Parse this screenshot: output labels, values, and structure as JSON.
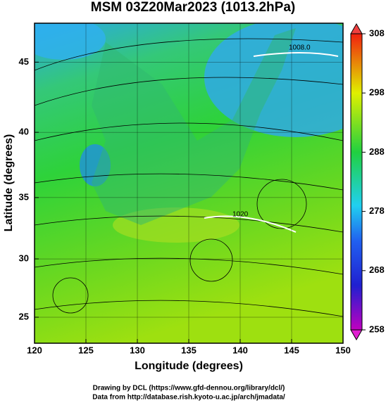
{
  "chart_data": {
    "type": "map",
    "title": "MSM 03Z20Mar2023 (1013.2hPa)",
    "xlabel": "Longitude (degrees)",
    "ylabel": "Latitude  (degrees)",
    "xlim": [
      120,
      150
    ],
    "xticks": [
      120,
      125,
      130,
      135,
      140,
      145,
      150
    ],
    "ylim": [
      22.7,
      47.6
    ],
    "yticks": [
      25,
      30,
      35,
      40,
      45
    ],
    "projection": "mercator",
    "contour_labels": [
      "1008.0",
      "1020"
    ],
    "colorbar": {
      "lim": [
        258,
        308
      ],
      "ticks": [
        258,
        268,
        278,
        288,
        298,
        308
      ]
    },
    "footer": [
      "Drawing by DCL (https://www.gfd-dennou.org/library/dcl/)",
      "Data from http://database.rish.kyoto-u.ac.jp/arch/jmadata/"
    ]
  }
}
